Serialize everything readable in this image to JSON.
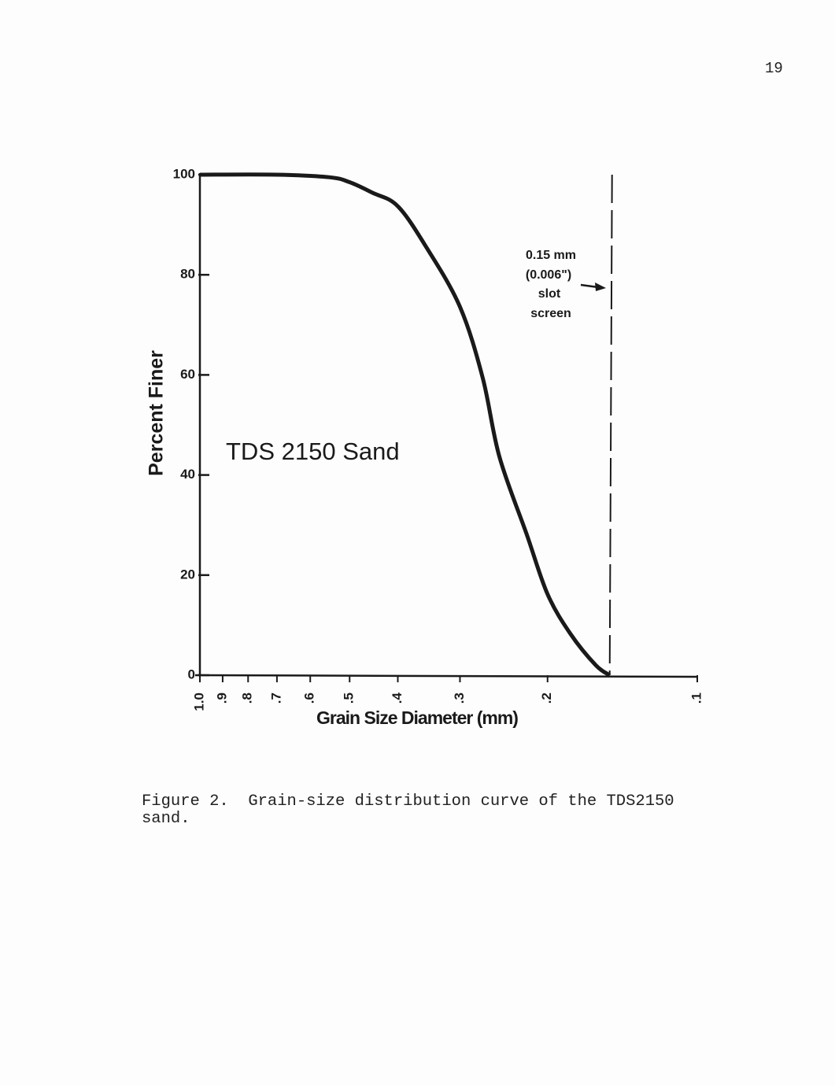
{
  "page_number": "19",
  "caption": "Figure 2.  Grain-size distribution curve of the TDS2150 sand.",
  "chart_data": {
    "type": "line",
    "xlabel": "Grain Size Diameter (mm)",
    "ylabel": "Percent Finer",
    "xscale": "log",
    "xlim": [
      1.0,
      0.1
    ],
    "ylim": [
      0,
      100
    ],
    "xticks": [
      {
        "value": 1.0,
        "label": "1.0"
      },
      {
        "value": 0.9,
        "label": ".9"
      },
      {
        "value": 0.8,
        "label": ".8"
      },
      {
        "value": 0.7,
        "label": ".7"
      },
      {
        "value": 0.6,
        "label": ".6"
      },
      {
        "value": 0.5,
        "label": ".5"
      },
      {
        "value": 0.4,
        "label": ".4"
      },
      {
        "value": 0.3,
        "label": ".3"
      },
      {
        "value": 0.2,
        "label": ".2"
      },
      {
        "value": 0.1,
        "label": ".1"
      }
    ],
    "yticks": [
      0,
      20,
      40,
      60,
      80,
      100
    ],
    "vline": 0.15,
    "annotations": [
      "TDS 2150 Sand",
      "0.15 mm",
      "(0.006\")",
      "slot",
      "screen"
    ],
    "series": [
      {
        "color": "#1a1a1a",
        "x": [
          1.0,
          0.7,
          0.55,
          0.5,
          0.45,
          0.4,
          0.35,
          0.3,
          0.27,
          0.25,
          0.22,
          0.2,
          0.18,
          0.16,
          0.15
        ],
        "values": [
          100,
          100,
          99.5,
          98.5,
          96.4,
          93.7,
          85.4,
          73.6,
          59.4,
          43.7,
          28,
          16.2,
          8.3,
          2,
          0
        ]
      }
    ]
  }
}
